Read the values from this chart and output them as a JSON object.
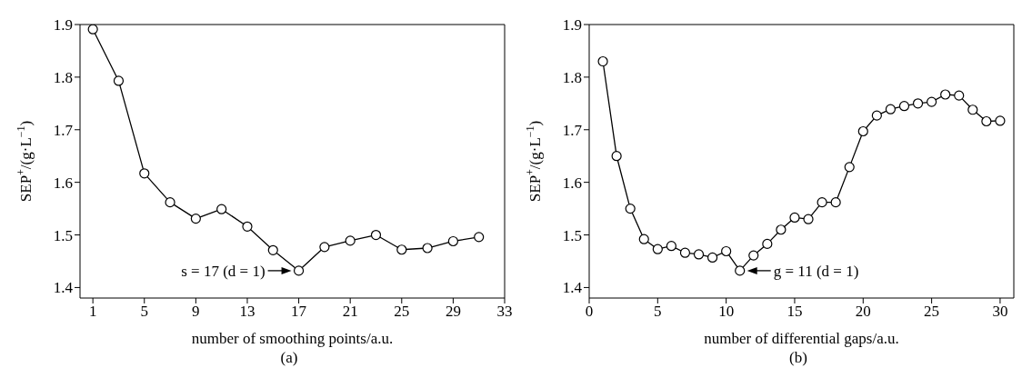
{
  "chart_data": [
    {
      "type": "line",
      "xlabel": "number of smoothing points/a.u.",
      "ylabel": "SEP$^{+}$/(g·L$^{−1}$)",
      "x": [
        1,
        3,
        5,
        7,
        9,
        11,
        13,
        15,
        17,
        19,
        21,
        23,
        25,
        27,
        29,
        31
      ],
      "series": [
        {
          "color": "#000000",
          "values": [
            1.891,
            1.793,
            1.617,
            1.562,
            1.531,
            1.549,
            1.516,
            1.471,
            1.432,
            1.477,
            1.489,
            1.5,
            1.472,
            1.475,
            1.488,
            1.496
          ]
        }
      ],
      "xlim": [
        0,
        33
      ],
      "xticks": [
        1,
        5,
        9,
        13,
        17,
        21,
        25,
        29,
        33
      ],
      "ylim": [
        1.38,
        1.9
      ],
      "yticks": [
        1.4,
        1.5,
        1.6,
        1.7,
        1.8,
        1.9
      ],
      "marker": "circle",
      "line_style": "solid",
      "grid": false,
      "legend": false,
      "annotations": [
        {
          "text": "s = 17 (d = 1)",
          "x": 17,
          "y": 1.432
        },
        "(a)"
      ]
    },
    {
      "type": "line",
      "xlabel": "number of differential gaps/a.u.",
      "ylabel": "SEP$^{+}$/(g·L$^{−1}$)",
      "x": [
        1,
        2,
        3,
        4,
        5,
        6,
        7,
        8,
        9,
        10,
        11,
        12,
        13,
        14,
        15,
        16,
        17,
        18,
        19,
        20,
        21,
        22,
        23,
        24,
        25,
        26,
        27,
        28,
        29,
        30
      ],
      "series": [
        {
          "color": "#000000",
          "values": [
            1.83,
            1.65,
            1.55,
            1.492,
            1.473,
            1.479,
            1.466,
            1.463,
            1.457,
            1.469,
            1.432,
            1.461,
            1.483,
            1.51,
            1.533,
            1.53,
            1.562,
            1.562,
            1.629,
            1.697,
            1.727,
            1.739,
            1.745,
            1.75,
            1.753,
            1.767,
            1.765,
            1.738,
            1.716,
            1.717
          ]
        }
      ],
      "xlim": [
        0,
        31
      ],
      "xticks": [
        0,
        5,
        10,
        15,
        20,
        25,
        30
      ],
      "ylim": [
        1.38,
        1.9
      ],
      "yticks": [
        1.4,
        1.5,
        1.6,
        1.7,
        1.8,
        1.9
      ],
      "marker": "circle",
      "line_style": "solid",
      "grid": false,
      "legend": false,
      "annotations": [
        {
          "text": "g = 11 (d = 1)",
          "x": 11,
          "y": 1.432
        },
        "(b)"
      ]
    }
  ]
}
